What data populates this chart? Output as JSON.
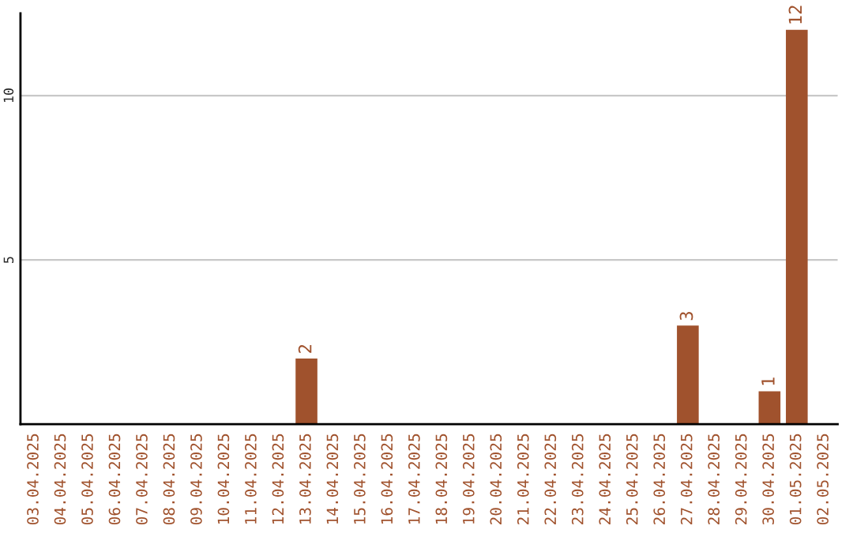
{
  "chart_data": {
    "type": "bar",
    "categories": [
      "03.04.2025",
      "04.04.2025",
      "05.04.2025",
      "06.04.2025",
      "07.04.2025",
      "08.04.2025",
      "09.04.2025",
      "10.04.2025",
      "11.04.2025",
      "12.04.2025",
      "13.04.2025",
      "14.04.2025",
      "15.04.2025",
      "16.04.2025",
      "17.04.2025",
      "18.04.2025",
      "19.04.2025",
      "20.04.2025",
      "21.04.2025",
      "22.04.2025",
      "23.04.2025",
      "24.04.2025",
      "25.04.2025",
      "26.04.2025",
      "27.04.2025",
      "28.04.2025",
      "29.04.2025",
      "30.04.2025",
      "01.05.2025",
      "02.05.2025"
    ],
    "values": [
      0,
      0,
      0,
      0,
      0,
      0,
      0,
      0,
      0,
      0,
      2,
      0,
      0,
      0,
      0,
      0,
      0,
      0,
      0,
      0,
      0,
      0,
      0,
      0,
      3,
      0,
      0,
      1,
      12,
      0
    ],
    "value_labels": [
      null,
      null,
      null,
      null,
      null,
      null,
      null,
      null,
      null,
      null,
      "2",
      null,
      null,
      null,
      null,
      null,
      null,
      null,
      null,
      null,
      null,
      null,
      null,
      null,
      "3",
      null,
      null,
      "1",
      "12",
      null
    ],
    "color": "#a0522d",
    "ylim": [
      0,
      12.5
    ],
    "yticks": [
      5,
      10
    ],
    "grid": "y"
  }
}
